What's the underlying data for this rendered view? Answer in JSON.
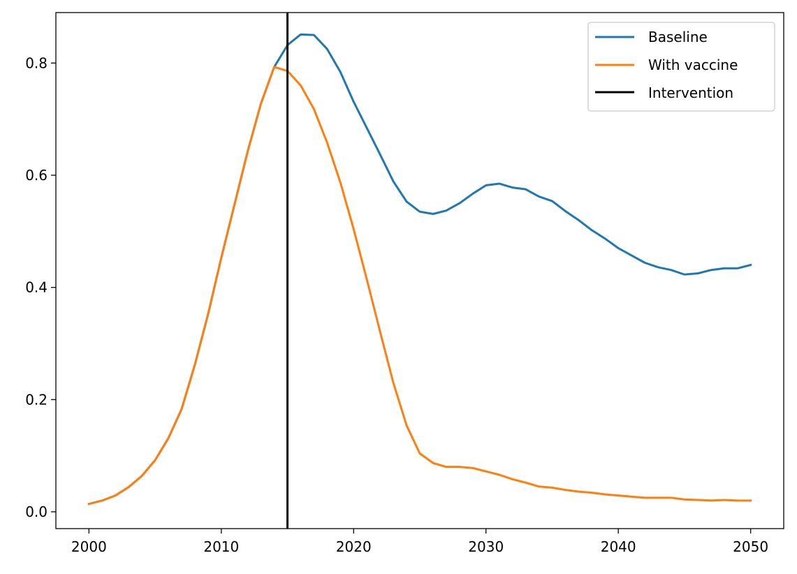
{
  "chart_data": {
    "type": "line",
    "title": "",
    "xlabel": "",
    "ylabel": "",
    "xlim": [
      1997.5,
      2052.5
    ],
    "ylim": [
      -0.03,
      0.89
    ],
    "xticks": [
      2000,
      2010,
      2020,
      2030,
      2040,
      2050
    ],
    "yticks": [
      0.0,
      0.2,
      0.4,
      0.6,
      0.8
    ],
    "xtick_labels": [
      "2000",
      "2010",
      "2020",
      "2030",
      "2040",
      "2050"
    ],
    "ytick_labels": [
      "0.0",
      "0.2",
      "0.4",
      "0.6",
      "0.8"
    ],
    "grid": false,
    "legend_position": "top-right",
    "x": [
      2000,
      2001,
      2002,
      2003,
      2004,
      2005,
      2006,
      2007,
      2008,
      2009,
      2010,
      2011,
      2012,
      2013,
      2014,
      2015,
      2016,
      2017,
      2018,
      2019,
      2020,
      2021,
      2022,
      2023,
      2024,
      2025,
      2026,
      2027,
      2028,
      2029,
      2030,
      2031,
      2032,
      2033,
      2034,
      2035,
      2036,
      2037,
      2038,
      2039,
      2040,
      2041,
      2042,
      2043,
      2044,
      2045,
      2046,
      2047,
      2048,
      2049,
      2050
    ],
    "series": [
      {
        "name": "Baseline",
        "color": "#1f77b4",
        "values": [
          0.014,
          0.02,
          0.029,
          0.044,
          0.064,
          0.092,
          0.131,
          0.183,
          0.262,
          0.352,
          0.453,
          0.548,
          0.643,
          0.728,
          0.793,
          0.832,
          0.851,
          0.85,
          0.825,
          0.784,
          0.731,
          0.684,
          0.637,
          0.589,
          0.553,
          0.535,
          0.531,
          0.537,
          0.55,
          0.567,
          0.582,
          0.585,
          0.578,
          0.575,
          0.562,
          0.554,
          0.536,
          0.52,
          0.502,
          0.487,
          0.47,
          0.457,
          0.444,
          0.436,
          0.431,
          0.423,
          0.425,
          0.431,
          0.434,
          0.434,
          0.44
        ]
      },
      {
        "name": "With vaccine",
        "color": "#ff7f0e",
        "values": [
          0.014,
          0.02,
          0.029,
          0.044,
          0.064,
          0.092,
          0.131,
          0.183,
          0.262,
          0.352,
          0.453,
          0.548,
          0.643,
          0.728,
          0.793,
          0.786,
          0.76,
          0.718,
          0.658,
          0.587,
          0.504,
          0.414,
          0.321,
          0.23,
          0.154,
          0.104,
          0.087,
          0.08,
          0.08,
          0.078,
          0.072,
          0.066,
          0.058,
          0.052,
          0.045,
          0.043,
          0.039,
          0.036,
          0.034,
          0.031,
          0.029,
          0.027,
          0.025,
          0.025,
          0.025,
          0.022,
          0.021,
          0.02,
          0.021,
          0.02,
          0.02
        ]
      }
    ],
    "vlines": [
      {
        "name": "Intervention",
        "x": 2015,
        "color": "#000000"
      }
    ]
  }
}
